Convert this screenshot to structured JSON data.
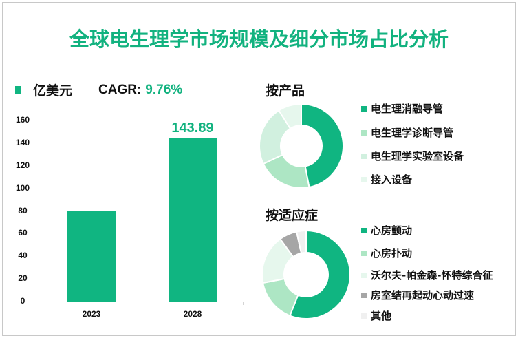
{
  "title": "全球电生理学市场规模及细分市场占比分析",
  "bar_legend": {
    "unit_label": "亿美元",
    "cagr_label": "CAGR:",
    "cagr_value": "9.76%"
  },
  "colors": {
    "accent": "#10b581",
    "light_green": "#ade6c4",
    "pale_green": "#d1f0df",
    "very_pale_green": "#e6f7ed",
    "gray": "#a6a6a6",
    "light_gray": "#f0f0f0"
  },
  "sections": {
    "product": {
      "title": "按产品"
    },
    "indication": {
      "title": "按适应症"
    }
  },
  "chart_data": [
    {
      "type": "bar",
      "title": "",
      "categories": [
        "2023",
        "2028"
      ],
      "values": [
        80,
        143.89
      ],
      "data_labels": [
        "",
        "143.89"
      ],
      "ylabel": "亿美元",
      "ylim": [
        0,
        160
      ],
      "yticks": [
        "0",
        "20",
        "40",
        "60",
        "80",
        "100",
        "120",
        "140",
        "160"
      ],
      "grid": false,
      "legend": [
        "亿美元"
      ],
      "annotation": "CAGR: 9.76%"
    },
    {
      "type": "pie",
      "title": "按产品",
      "donut": true,
      "categories": [
        "电生理消融导管",
        "电生理学诊断导管",
        "电生理学实验室设备",
        "接入设备"
      ],
      "values": [
        47,
        21,
        23,
        9
      ],
      "colors": [
        "#10b581",
        "#ade6c4",
        "#d1f0df",
        "#e6f7ed"
      ],
      "legend_position": "right"
    },
    {
      "type": "pie",
      "title": "按适应症",
      "donut": true,
      "categories": [
        "心房颤动",
        "心房扑动",
        "沃尔夫-帕金森-怀特综合征",
        "房室结再起动心动过速",
        "其他"
      ],
      "values": [
        56,
        16,
        18,
        6.5,
        3.5
      ],
      "colors": [
        "#10b581",
        "#ade6c4",
        "#e6f7ed",
        "#a6a6a6",
        "#f0f0f0"
      ],
      "legend_position": "right"
    }
  ]
}
